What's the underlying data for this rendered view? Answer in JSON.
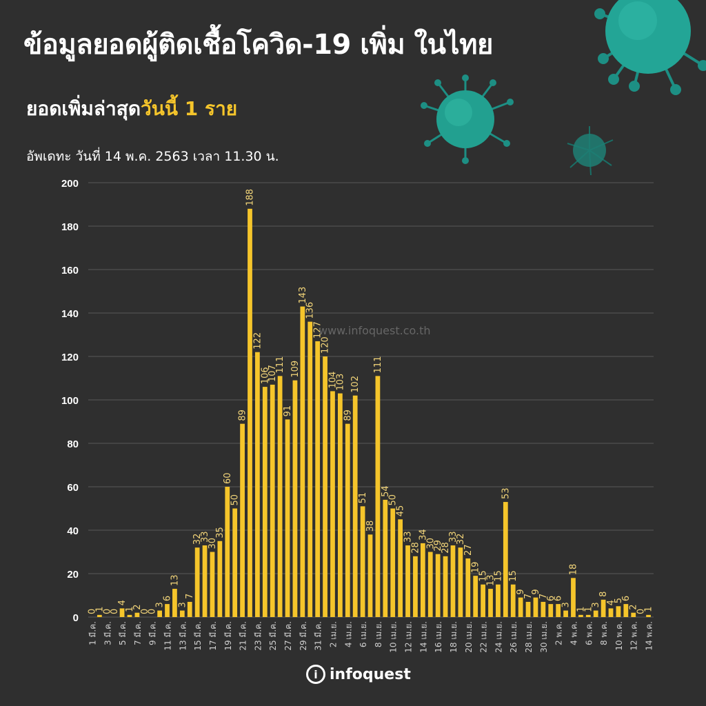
{
  "header": {
    "title": "ข้อมูลยอดผู้ติดเชื้อโควิด-19 เพิ่ม ในไทย",
    "subtitle_prefix": "ยอดเพิ่มล่าสุด",
    "subtitle_highlight": "วันนี้ 1 ราย",
    "updated": "อัพเดทะ วันที่ 14 พ.ค. 2563 เวลา 11.30 น."
  },
  "watermark": "www.infoquest.co.th",
  "logo": {
    "icon": "i",
    "text": "infoquest"
  },
  "colors": {
    "background": "#2f2f2f",
    "bar": "#f5c52b",
    "grid": "#5a5a5a",
    "highlight": "#f5c52b"
  },
  "chart_data": {
    "type": "bar",
    "title": "",
    "xlabel": "",
    "ylabel": "",
    "ylim": [
      0,
      200
    ],
    "yticks": [
      0,
      20,
      40,
      60,
      80,
      100,
      120,
      140,
      160,
      180,
      200
    ],
    "grid": true,
    "categories": [
      "1 มี.ค.",
      "2 มี.ค.",
      "3 มี.ค.",
      "4 มี.ค.",
      "5 มี.ค.",
      "6 มี.ค.",
      "7 มี.ค.",
      "8 มี.ค.",
      "9 มี.ค.",
      "10 มี.ค.",
      "11 มี.ค.",
      "12 มี.ค.",
      "13 มี.ค.",
      "14 มี.ค.",
      "15 มี.ค.",
      "16 มี.ค.",
      "17 มี.ค.",
      "18 มี.ค.",
      "19 มี.ค.",
      "20 มี.ค.",
      "21 มี.ค.",
      "22 มี.ค.",
      "23 มี.ค.",
      "24 มี.ค.",
      "25 มี.ค.",
      "26 มี.ค.",
      "27 มี.ค.",
      "28 มี.ค.",
      "29 มี.ค.",
      "30 มี.ค.",
      "31 มี.ค.",
      "1 เม.ย.",
      "2 เม.ย.",
      "3 เม.ย.",
      "4 เม.ย.",
      "5 เม.ย.",
      "6 เม.ย.",
      "7 เม.ย.",
      "8 เม.ย.",
      "9 เม.ย.",
      "10 เม.ย.",
      "11 เม.ย.",
      "12 เม.ย.",
      "13 เม.ย.",
      "14 เม.ย.",
      "15 เม.ย.",
      "16 เม.ย.",
      "17 เม.ย.",
      "18 เม.ย.",
      "19 เม.ย.",
      "20 เม.ย.",
      "21 เม.ย.",
      "22 เม.ย.",
      "23 เม.ย.",
      "24 เม.ย.",
      "25 เม.ย.",
      "26 เม.ย.",
      "27 เม.ย.",
      "28 เม.ย.",
      "29 เม.ย.",
      "30 เม.ย.",
      "1 พ.ค.",
      "2 พ.ค.",
      "3 พ.ค.",
      "4 พ.ค.",
      "5 พ.ค.",
      "6 พ.ค.",
      "7 พ.ค.",
      "8 พ.ค.",
      "9 พ.ค.",
      "10 พ.ค.",
      "11 พ.ค.",
      "12 พ.ค.",
      "13 พ.ค.",
      "14 พ.ค."
    ],
    "tick_labels": [
      "1 มี.ค.",
      "3 มี.ค.",
      "5 มี.ค.",
      "7 มี.ค.",
      "9 มี.ค.",
      "11 มี.ค.",
      "13 มี.ค.",
      "15 มี.ค.",
      "17 มี.ค.",
      "19 มี.ค.",
      "21 มี.ค.",
      "23 มี.ค.",
      "25 มี.ค.",
      "27 มี.ค.",
      "29 มี.ค.",
      "31 มี.ค.",
      "2 เม.ย.",
      "4 เม.ย.",
      "6 เม.ย.",
      "8 เม.ย.",
      "10 เม.ย.",
      "12 เม.ย.",
      "14 เม.ย.",
      "16 เม.ย.",
      "18 เม.ย.",
      "20 เม.ย.",
      "22 เม.ย.",
      "24 เม.ย.",
      "26 เม.ย.",
      "28 เม.ย.",
      "30 เม.ย.",
      "2 พ.ค.",
      "4 พ.ค.",
      "6 พ.ค.",
      "8 พ.ค.",
      "10 พ.ค.",
      "12 พ.ค.",
      "14 พ.ค."
    ],
    "values": [
      0,
      1,
      0,
      0,
      4,
      1,
      2,
      0,
      0,
      3,
      6,
      13,
      3,
      7,
      32,
      33,
      30,
      35,
      60,
      50,
      89,
      188,
      122,
      106,
      107,
      111,
      91,
      109,
      143,
      136,
      127,
      120,
      104,
      103,
      89,
      102,
      51,
      38,
      111,
      54,
      50,
      45,
      33,
      28,
      34,
      30,
      29,
      28,
      33,
      32,
      27,
      19,
      15,
      13,
      15,
      53,
      15,
      9,
      7,
      9,
      7,
      6,
      6,
      3,
      18,
      1,
      1,
      3,
      8,
      4,
      5,
      6,
      2,
      0,
      1
    ]
  }
}
